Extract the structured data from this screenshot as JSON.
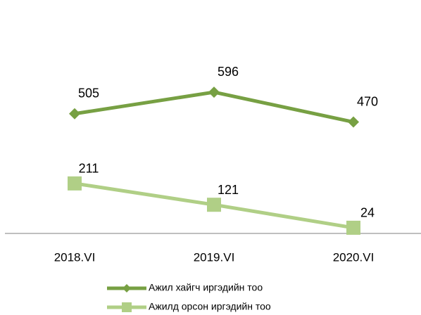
{
  "chart_data": {
    "type": "line",
    "categories": [
      "2018.VI",
      "2019.VI",
      "2020.VI"
    ],
    "series": [
      {
        "name": "Ажил хайгч иргэдийн тоо",
        "color": "#77a043",
        "marker": "diamond",
        "values": [
          505,
          596,
          470
        ]
      },
      {
        "name": "Ажилд орсон иргэдийн тоо",
        "color": "#b0cf86",
        "marker": "square",
        "values": [
          211,
          121,
          24
        ]
      }
    ],
    "ylim": [
      0,
      700
    ],
    "legend": "bottom"
  }
}
